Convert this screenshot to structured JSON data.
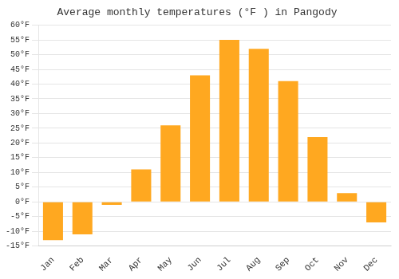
{
  "chart_data": {
    "type": "bar",
    "title": "Average monthly temperatures (°F ) in Pangody",
    "categories": [
      "Jan",
      "Feb",
      "Mar",
      "Apr",
      "May",
      "Jun",
      "Jul",
      "Aug",
      "Sep",
      "Oct",
      "Nov",
      "Dec"
    ],
    "values": [
      -13,
      -11,
      -1,
      11,
      26,
      43,
      55,
      52,
      41,
      22,
      3,
      -7
    ],
    "color": "#FFA820",
    "ylim": [
      -15,
      60
    ],
    "yticks": [
      {
        "value": -15,
        "label": "-15°F"
      },
      {
        "value": -10,
        "label": "-10°F"
      },
      {
        "value": -5,
        "label": "-5°F"
      },
      {
        "value": 0,
        "label": "0°F"
      },
      {
        "value": 5,
        "label": "5°F"
      },
      {
        "value": 10,
        "label": "10°F"
      },
      {
        "value": 15,
        "label": "15°F"
      },
      {
        "value": 20,
        "label": "20°F"
      },
      {
        "value": 25,
        "label": "25°F"
      },
      {
        "value": 30,
        "label": "30°F"
      },
      {
        "value": 35,
        "label": "35°F"
      },
      {
        "value": 40,
        "label": "40°F"
      },
      {
        "value": 45,
        "label": "45°F"
      },
      {
        "value": 50,
        "label": "50°F"
      },
      {
        "value": 55,
        "label": "55°F"
      },
      {
        "value": 60,
        "label": "60°F"
      }
    ],
    "grid": true
  }
}
